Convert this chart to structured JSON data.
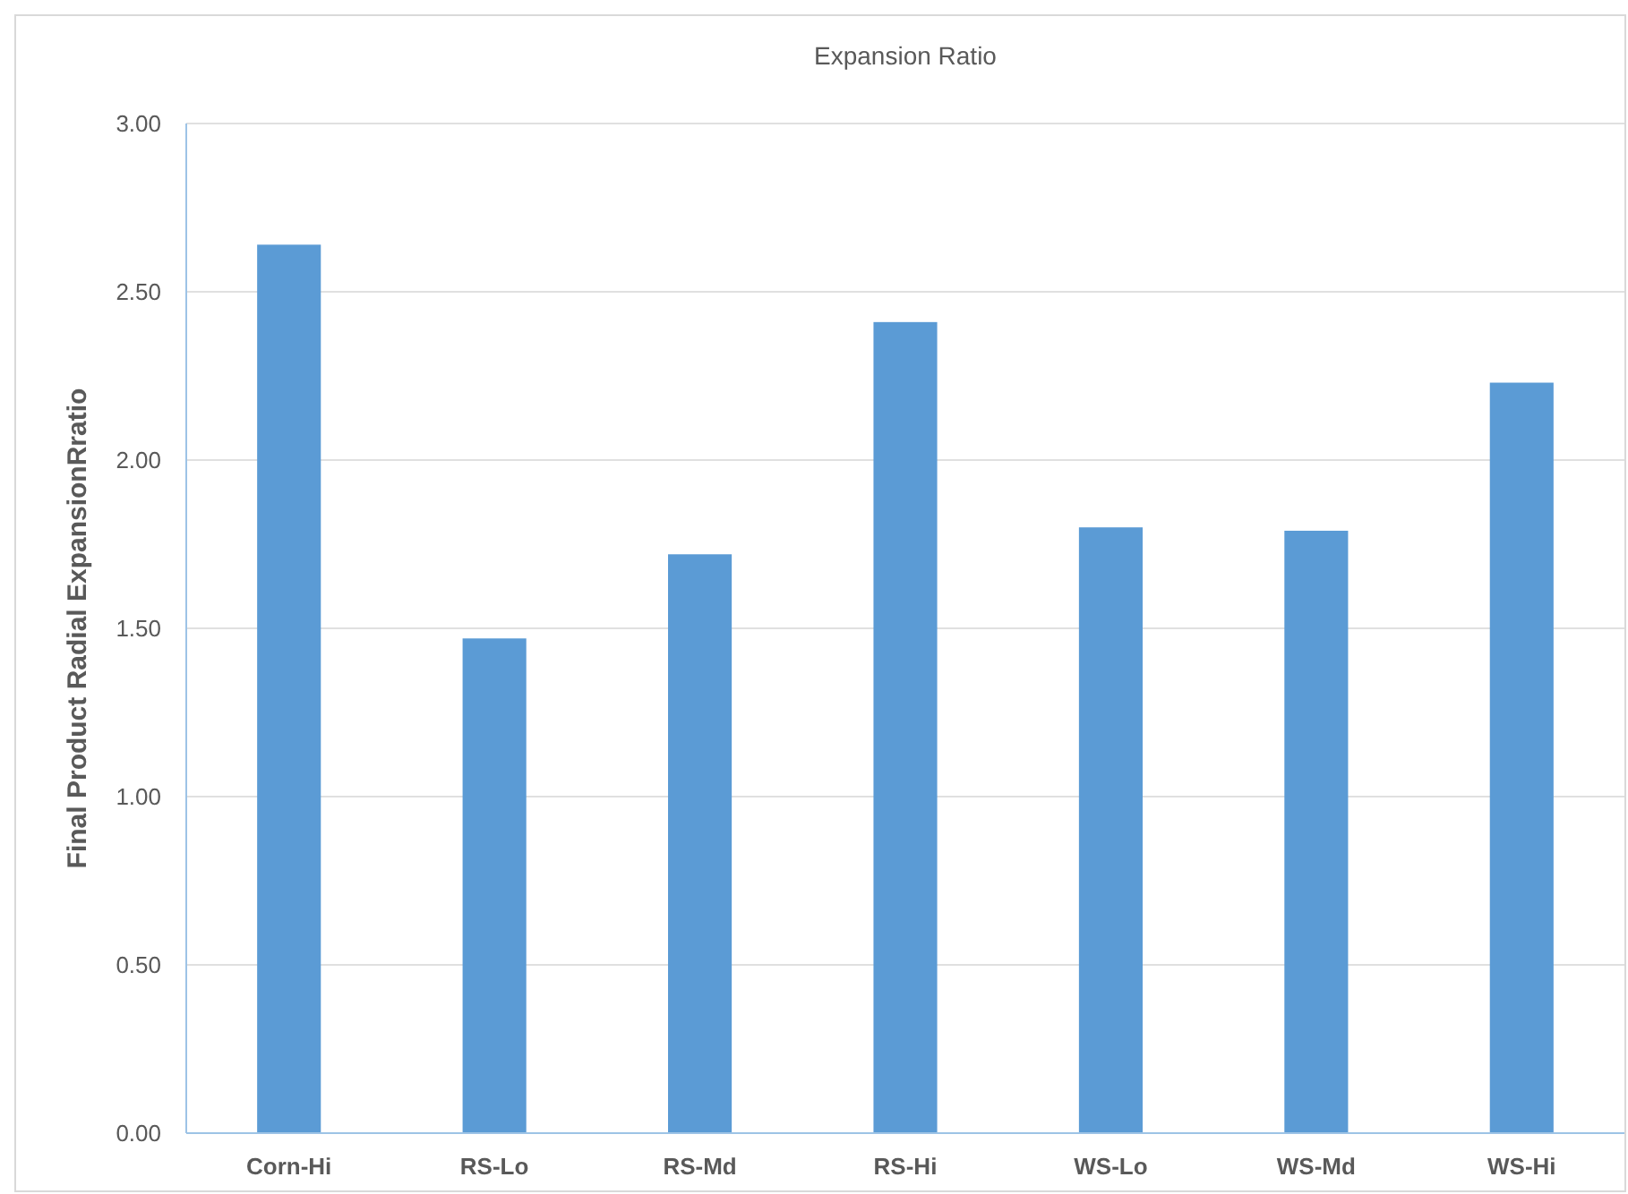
{
  "chart_data": {
    "type": "bar",
    "title": "Expansion Ratio",
    "ylabel": "Final Product Radial ExpansionRratio",
    "categories": [
      "Corn-Hi",
      "RS-Lo",
      "RS-Md",
      "RS-Hi",
      "WS-Lo",
      "WS-Md",
      "WS-Hi"
    ],
    "values": [
      2.64,
      1.47,
      1.72,
      2.41,
      1.8,
      1.79,
      2.23
    ],
    "color": "#5b9bd5",
    "ylim": [
      0,
      3
    ],
    "yticks": [
      {
        "value": 0,
        "label": "0.00"
      },
      {
        "value": 0.5,
        "label": "0.50"
      },
      {
        "value": 1,
        "label": "1.00"
      },
      {
        "value": 1.5,
        "label": "1.50"
      },
      {
        "value": 2,
        "label": "2.00"
      },
      {
        "value": 2.5,
        "label": "2.50"
      },
      {
        "value": 3,
        "label": "3.00"
      }
    ],
    "grid": "y"
  }
}
